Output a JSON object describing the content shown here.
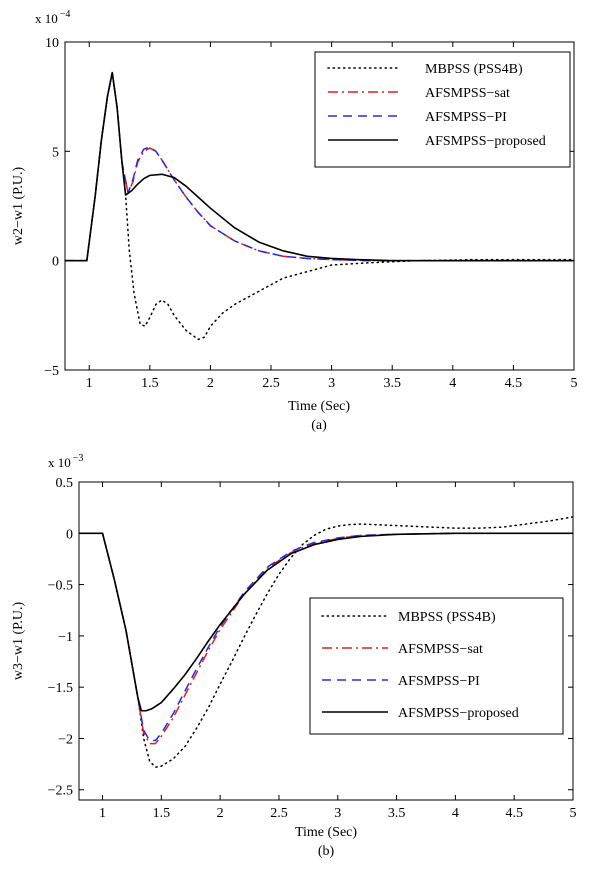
{
  "chart_data": [
    {
      "type": "line",
      "panel": "a",
      "caption": "(a)",
      "xlabel": "Time (Sec)",
      "ylabel": "w2−w1 (P.U.)",
      "y_exponent_base": "x 10",
      "y_exponent_power": "−4",
      "xlim": [
        0.8,
        5
      ],
      "ylim": [
        -5,
        10
      ],
      "x_ticks": [
        1,
        1.5,
        2,
        2.5,
        3,
        3.5,
        4,
        4.5,
        5
      ],
      "x_tick_labels": [
        "1",
        "1.5",
        "2",
        "2.5",
        "3",
        "3.5",
        "4",
        "4.5",
        "5"
      ],
      "y_ticks": [
        -5,
        0,
        5,
        10
      ],
      "y_tick_labels": [
        "−5",
        "0",
        "5",
        "10"
      ],
      "grid": false,
      "legend_position": "top-right",
      "series": [
        {
          "name": "MBPSS (PSS4B)",
          "color": "#000000",
          "style": "dotted",
          "x": [
            0.8,
            0.98,
            1.05,
            1.1,
            1.15,
            1.19,
            1.23,
            1.27,
            1.3,
            1.33,
            1.37,
            1.42,
            1.46,
            1.5,
            1.55,
            1.6,
            1.65,
            1.7,
            1.8,
            1.9,
            1.95,
            2.0,
            2.1,
            2.2,
            2.4,
            2.6,
            2.8,
            3.0,
            3.3,
            3.7,
            4.2,
            4.6,
            5.0
          ],
          "y": [
            0,
            0,
            3.0,
            5.5,
            7.5,
            8.6,
            7.0,
            4.5,
            3.0,
            0.5,
            -1.5,
            -2.9,
            -3.0,
            -2.6,
            -2.0,
            -1.8,
            -2.0,
            -2.5,
            -3.2,
            -3.6,
            -3.5,
            -3.0,
            -2.4,
            -2.0,
            -1.4,
            -0.8,
            -0.5,
            -0.2,
            -0.1,
            0.0,
            0.05,
            0.05,
            0.05
          ]
        },
        {
          "name": "AFSMPSS−sat",
          "color": "#e0201b",
          "style": "dashdot",
          "x": [
            0.8,
            0.98,
            1.05,
            1.1,
            1.15,
            1.19,
            1.23,
            1.27,
            1.32,
            1.36,
            1.4,
            1.45,
            1.5,
            1.55,
            1.6,
            1.7,
            1.8,
            1.9,
            2.0,
            2.2,
            2.4,
            2.6,
            2.8,
            3.0,
            3.3,
            3.6,
            4.0,
            4.5,
            5.0
          ],
          "y": [
            0,
            0,
            3.0,
            5.5,
            7.5,
            8.6,
            7.0,
            4.5,
            3.1,
            3.6,
            4.5,
            5.0,
            5.15,
            5.0,
            4.6,
            3.7,
            2.9,
            2.2,
            1.6,
            0.9,
            0.45,
            0.2,
            0.1,
            0.05,
            0.0,
            0.0,
            0.0,
            0.0,
            0.0
          ]
        },
        {
          "name": "AFSMPSS−PI",
          "color": "#2a2ae0",
          "style": "dashed",
          "x": [
            0.8,
            0.98,
            1.05,
            1.1,
            1.15,
            1.19,
            1.23,
            1.27,
            1.32,
            1.36,
            1.4,
            1.45,
            1.5,
            1.55,
            1.6,
            1.7,
            1.8,
            1.9,
            2.0,
            2.2,
            2.4,
            2.6,
            2.8,
            3.0,
            3.3,
            3.6,
            4.0,
            4.5,
            5.0
          ],
          "y": [
            0,
            0,
            3.0,
            5.5,
            7.5,
            8.6,
            7.0,
            4.5,
            3.1,
            3.7,
            4.6,
            5.1,
            5.2,
            5.0,
            4.6,
            3.7,
            2.9,
            2.2,
            1.6,
            0.9,
            0.45,
            0.2,
            0.1,
            0.05,
            0.0,
            0.0,
            0.0,
            0.0,
            0.0
          ]
        },
        {
          "name": "AFSMPSS−proposed",
          "color": "#000000",
          "style": "solid",
          "x": [
            0.8,
            0.98,
            1.05,
            1.1,
            1.15,
            1.19,
            1.23,
            1.27,
            1.3,
            1.35,
            1.4,
            1.45,
            1.5,
            1.6,
            1.7,
            1.8,
            1.9,
            2.0,
            2.2,
            2.4,
            2.6,
            2.8,
            3.0,
            3.2,
            3.5,
            4.0,
            4.5,
            5.0
          ],
          "y": [
            0,
            0,
            3.0,
            5.5,
            7.5,
            8.6,
            7.0,
            4.5,
            3.0,
            3.2,
            3.5,
            3.75,
            3.9,
            3.95,
            3.8,
            3.4,
            2.9,
            2.4,
            1.5,
            0.85,
            0.45,
            0.2,
            0.1,
            0.05,
            0.0,
            0.0,
            0.0,
            0.0
          ]
        }
      ]
    },
    {
      "type": "line",
      "panel": "b",
      "caption": "(b)",
      "xlabel": "Time (Sec)",
      "ylabel": "w3−w1 (P.U.)",
      "y_exponent_base": "x 10",
      "y_exponent_power": "−3",
      "xlim": [
        0.8,
        5
      ],
      "ylim": [
        -2.6,
        0.5
      ],
      "x_ticks": [
        1,
        1.5,
        2,
        2.5,
        3,
        3.5,
        4,
        4.5,
        5
      ],
      "x_tick_labels": [
        "1",
        "1.5",
        "2",
        "2.5",
        "3",
        "3.5",
        "4",
        "4.5",
        "5"
      ],
      "y_ticks": [
        -2.5,
        -2,
        -1.5,
        -1,
        -0.5,
        0,
        0.5
      ],
      "y_tick_labels": [
        "−2.5",
        "−2",
        "−1.5",
        "−1",
        "−0.5",
        "0",
        "0.5"
      ],
      "grid": false,
      "legend_position": "lower-right",
      "series": [
        {
          "name": "MBPSS (PSS4B)",
          "color": "#000000",
          "style": "dotted",
          "x": [
            0.8,
            1.0,
            1.1,
            1.2,
            1.3,
            1.35,
            1.4,
            1.45,
            1.5,
            1.6,
            1.7,
            1.8,
            1.9,
            2.0,
            2.1,
            2.2,
            2.3,
            2.4,
            2.5,
            2.6,
            2.7,
            2.8,
            2.9,
            3.0,
            3.1,
            3.2,
            3.3,
            3.4,
            3.6,
            3.8,
            4.0,
            4.2,
            4.4,
            4.6,
            4.8,
            5.0
          ],
          "y": [
            0,
            0,
            -0.45,
            -0.95,
            -1.6,
            -2.0,
            -2.22,
            -2.28,
            -2.27,
            -2.2,
            -2.08,
            -1.9,
            -1.7,
            -1.47,
            -1.25,
            -1.02,
            -0.8,
            -0.59,
            -0.4,
            -0.24,
            -0.11,
            -0.02,
            0.04,
            0.07,
            0.085,
            0.09,
            0.085,
            0.08,
            0.07,
            0.06,
            0.05,
            0.05,
            0.06,
            0.09,
            0.12,
            0.16
          ]
        },
        {
          "name": "AFSMPSS−sat",
          "color": "#e0201b",
          "style": "dashdot",
          "x": [
            0.8,
            1.0,
            1.1,
            1.2,
            1.3,
            1.35,
            1.4,
            1.45,
            1.5,
            1.6,
            1.7,
            1.8,
            1.9,
            2.0,
            2.2,
            2.4,
            2.6,
            2.7,
            2.8,
            3.0,
            3.2,
            3.5,
            4.0,
            4.5,
            5.0
          ],
          "y": [
            0,
            0,
            -0.45,
            -0.95,
            -1.6,
            -1.95,
            -2.05,
            -2.05,
            -1.98,
            -1.8,
            -1.58,
            -1.36,
            -1.14,
            -0.94,
            -0.6,
            -0.34,
            -0.19,
            -0.14,
            -0.1,
            -0.05,
            -0.02,
            -0.01,
            0.0,
            0.0,
            0.0
          ]
        },
        {
          "name": "AFSMPSS−PI",
          "color": "#2a2ae0",
          "style": "dashed",
          "x": [
            0.8,
            1.0,
            1.1,
            1.2,
            1.3,
            1.35,
            1.4,
            1.45,
            1.5,
            1.6,
            1.7,
            1.8,
            1.9,
            2.0,
            2.2,
            2.4,
            2.6,
            2.7,
            2.8,
            3.0,
            3.2,
            3.5,
            4.0,
            4.5,
            5.0
          ],
          "y": [
            0,
            0,
            -0.45,
            -0.95,
            -1.6,
            -1.92,
            -2.02,
            -2.02,
            -1.95,
            -1.76,
            -1.54,
            -1.32,
            -1.11,
            -0.91,
            -0.58,
            -0.33,
            -0.18,
            -0.13,
            -0.09,
            -0.045,
            -0.02,
            -0.01,
            0.0,
            0.0,
            0.0
          ]
        },
        {
          "name": "AFSMPSS−proposed",
          "color": "#000000",
          "style": "solid",
          "x": [
            0.8,
            1.0,
            1.1,
            1.2,
            1.3,
            1.33,
            1.37,
            1.42,
            1.5,
            1.6,
            1.7,
            1.8,
            1.9,
            2.0,
            2.2,
            2.4,
            2.6,
            2.8,
            3.0,
            3.2,
            3.5,
            4.0,
            4.5,
            5.0
          ],
          "y": [
            0,
            0,
            -0.45,
            -0.95,
            -1.6,
            -1.73,
            -1.73,
            -1.71,
            -1.65,
            -1.52,
            -1.38,
            -1.22,
            -1.05,
            -0.89,
            -0.6,
            -0.36,
            -0.2,
            -0.11,
            -0.06,
            -0.03,
            -0.01,
            0.0,
            0.0,
            0.0
          ]
        }
      ]
    }
  ]
}
